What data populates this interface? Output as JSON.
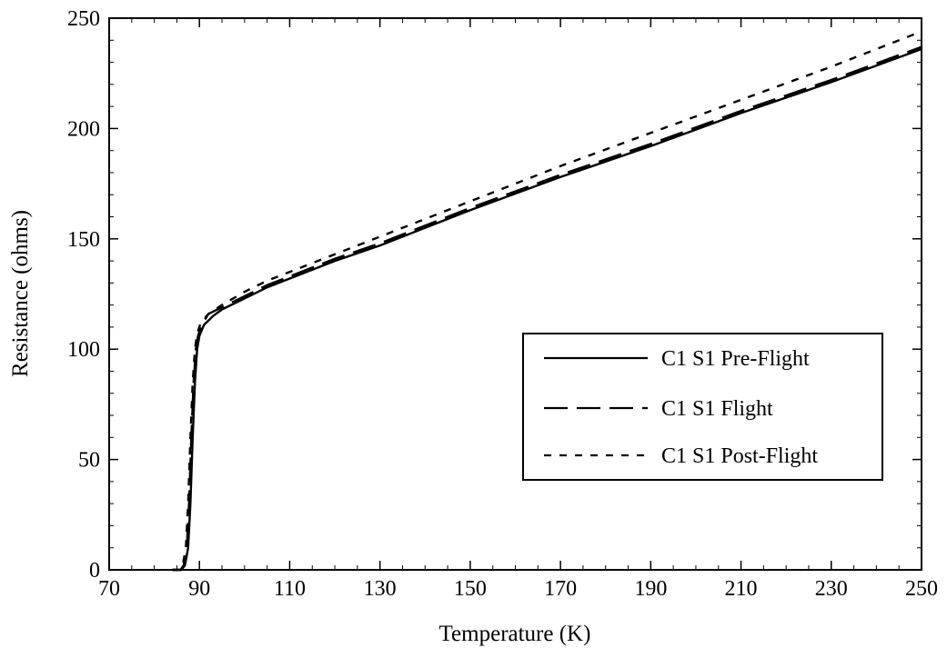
{
  "chart_data": {
    "type": "line",
    "title": "",
    "xlabel": "Temperature (K)",
    "ylabel": "Resistance (ohms)",
    "xlim": [
      70,
      250
    ],
    "ylim": [
      0,
      250
    ],
    "x_ticks": [
      70,
      90,
      110,
      130,
      150,
      170,
      190,
      210,
      230,
      250
    ],
    "y_ticks": [
      0,
      50,
      100,
      150,
      200,
      250
    ],
    "x_tick_labels": [
      "70",
      "90",
      "110",
      "130",
      "150",
      "170",
      "190",
      "210",
      "230",
      "250"
    ],
    "y_tick_labels": [
      "0",
      "50",
      "100",
      "150",
      "200",
      "250"
    ],
    "grid": false,
    "legend_position": "center-right",
    "series": [
      {
        "name": "C1 S1 Pre-Flight",
        "style": "solid",
        "color": "#000000",
        "x": [
          84,
          86,
          86.8,
          87.5,
          88,
          88.5,
          89,
          89.5,
          90,
          91,
          93,
          95,
          100,
          105,
          110,
          120,
          130,
          150,
          170,
          190,
          210,
          230,
          250
        ],
        "y": [
          0,
          0,
          2,
          10,
          30,
          60,
          85,
          100,
          106,
          111,
          115,
          118,
          123,
          128,
          132,
          140,
          147,
          163,
          178,
          192,
          207,
          221,
          236
        ]
      },
      {
        "name": "C1 S1 Flight",
        "style": "long-dash",
        "color": "#000000",
        "x": [
          84,
          85.8,
          86.5,
          87.2,
          87.7,
          88.2,
          88.7,
          89.2,
          89.7,
          90.5,
          92,
          95,
          100,
          105,
          110,
          120,
          130,
          150,
          170,
          190,
          210,
          230,
          250
        ],
        "y": [
          0,
          0,
          2,
          10,
          30,
          60,
          85,
          100,
          106,
          111,
          116,
          119,
          124,
          129,
          133,
          141,
          148,
          164,
          179,
          193,
          208,
          222,
          237
        ]
      },
      {
        "name": "C1 S1 Post-Flight",
        "style": "short-dash",
        "color": "#000000",
        "x": [
          84,
          85.5,
          86.3,
          87,
          87.5,
          88,
          88.5,
          89,
          89.5,
          90.3,
          92,
          95,
          100,
          105,
          110,
          120,
          130,
          150,
          170,
          190,
          210,
          230,
          250
        ],
        "y": [
          0,
          0,
          2,
          10,
          30,
          60,
          85,
          100,
          107,
          112,
          116,
          120,
          126,
          131,
          135,
          143,
          151,
          167,
          183,
          198,
          213,
          228,
          244
        ]
      }
    ]
  }
}
